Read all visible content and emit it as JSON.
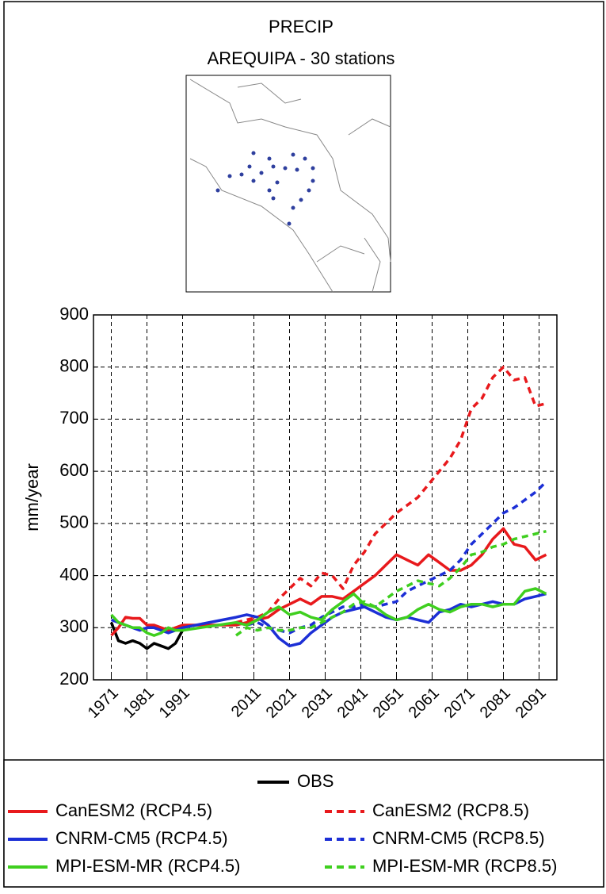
{
  "chart_data": {
    "type": "line",
    "title": "PRECIP",
    "subtitle": "AREQUIPA - 30 stations",
    "y_label": "mm/year",
    "x": [
      1971,
      1973,
      1975,
      1977,
      1979,
      1981,
      1983,
      1985,
      1987,
      1989,
      1991,
      2006,
      2009,
      2012,
      2015,
      2018,
      2021,
      2024,
      2027,
      2030,
      2033,
      2036,
      2039,
      2042,
      2045,
      2048,
      2051,
      2054,
      2057,
      2060,
      2063,
      2066,
      2069,
      2072,
      2075,
      2078,
      2081,
      2084,
      2087,
      2090,
      2093
    ],
    "xlim": [
      1966,
      2096
    ],
    "xticks": [
      1971,
      1981,
      1991,
      2011,
      2021,
      2031,
      2041,
      2051,
      2061,
      2071,
      2081,
      2091
    ],
    "ylim": [
      200,
      900
    ],
    "yticks": [
      200,
      300,
      400,
      500,
      600,
      700,
      800,
      900
    ],
    "grid": true,
    "series": [
      {
        "name": "OBS",
        "color": "#000000",
        "dashed": false,
        "values": [
          310,
          275,
          270,
          275,
          270,
          260,
          270,
          265,
          260,
          270,
          295,
          null,
          null,
          null,
          null,
          null,
          null,
          null,
          null,
          null,
          null,
          null,
          null,
          null,
          null,
          null,
          null,
          null,
          null,
          null,
          null,
          null,
          null,
          null,
          null,
          null,
          null,
          null,
          null,
          null,
          null
        ]
      },
      {
        "name": "CanESM2 (RCP4.5)",
        "color": "#e8191c",
        "dashed": false,
        "values": [
          285,
          300,
          320,
          318,
          318,
          305,
          305,
          300,
          295,
          300,
          305,
          305,
          310,
          315,
          320,
          335,
          345,
          355,
          345,
          360,
          360,
          355,
          370,
          385,
          400,
          420,
          440,
          430,
          420,
          440,
          425,
          410,
          410,
          420,
          440,
          470,
          490,
          460,
          455,
          430,
          440
        ]
      },
      {
        "name": "CanESM2 (RCP8.5)",
        "color": "#e8191c",
        "dashed": true,
        "values": [
          null,
          null,
          null,
          null,
          null,
          null,
          null,
          null,
          null,
          null,
          null,
          310,
          315,
          320,
          330,
          355,
          375,
          395,
          380,
          405,
          400,
          375,
          420,
          445,
          480,
          500,
          520,
          535,
          550,
          575,
          600,
          625,
          660,
          720,
          740,
          780,
          800,
          775,
          780,
          725,
          730
        ]
      },
      {
        "name": "CNRM-CM5 (RCP4.5)",
        "color": "#1c2fd6",
        "dashed": false,
        "values": [
          315,
          310,
          305,
          300,
          295,
          300,
          300,
          295,
          290,
          295,
          300,
          320,
          325,
          320,
          305,
          280,
          265,
          270,
          290,
          305,
          320,
          330,
          335,
          340,
          330,
          320,
          315,
          320,
          315,
          310,
          330,
          335,
          345,
          340,
          345,
          350,
          345,
          345,
          355,
          360,
          365
        ]
      },
      {
        "name": "CNRM-CM5 (RCP8.5)",
        "color": "#1c2fd6",
        "dashed": true,
        "values": [
          null,
          null,
          null,
          null,
          null,
          null,
          null,
          null,
          null,
          null,
          null,
          310,
          305,
          310,
          300,
          295,
          290,
          300,
          305,
          320,
          330,
          340,
          340,
          345,
          340,
          345,
          350,
          370,
          380,
          390,
          400,
          410,
          430,
          460,
          480,
          500,
          520,
          530,
          545,
          560,
          580
        ]
      },
      {
        "name": "MPI-ESM-MR (RCP4.5)",
        "color": "#3fcf1f",
        "dashed": false,
        "values": [
          325,
          310,
          305,
          300,
          300,
          290,
          285,
          290,
          300,
          295,
          295,
          310,
          305,
          315,
          330,
          340,
          325,
          330,
          320,
          315,
          335,
          350,
          365,
          345,
          340,
          325,
          315,
          320,
          335,
          345,
          335,
          330,
          340,
          345,
          345,
          340,
          345,
          345,
          370,
          375,
          365
        ]
      },
      {
        "name": "MPI-ESM-MR (RCP8.5)",
        "color": "#3fcf1f",
        "dashed": true,
        "values": [
          null,
          null,
          null,
          null,
          null,
          null,
          null,
          null,
          null,
          null,
          null,
          285,
          300,
          295,
          300,
          295,
          295,
          300,
          300,
          310,
          320,
          330,
          345,
          350,
          340,
          355,
          370,
          380,
          390,
          385,
          380,
          395,
          415,
          440,
          445,
          455,
          460,
          470,
          475,
          480,
          485
        ]
      }
    ]
  }
}
